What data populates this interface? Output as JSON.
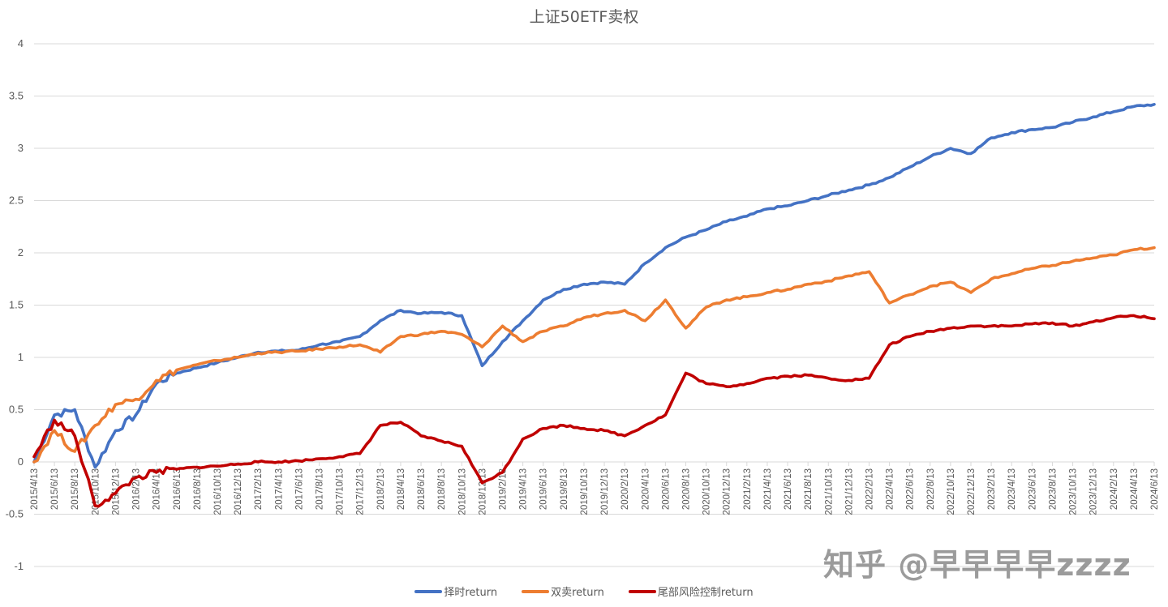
{
  "chart_data": {
    "type": "line",
    "title": "上证50ETF卖权",
    "xlabel": "",
    "ylabel": "",
    "ylim": [
      -1,
      4
    ],
    "yticks": [
      "4",
      "3.5",
      "3",
      "2.5",
      "2",
      "1.5",
      "1",
      "0.5",
      "0",
      "-0.5",
      "-1"
    ],
    "grid": true,
    "legend_position": "bottom",
    "categories": [
      "2015/4/13",
      "2015/6/13",
      "2015/8/13",
      "2015/10/13",
      "2015/12/13",
      "2016/2/13",
      "2016/4/13",
      "2016/6/13",
      "2016/8/13",
      "2016/10/13",
      "2016/12/13",
      "2017/2/13",
      "2017/4/13",
      "2017/6/13",
      "2017/8/13",
      "2017/10/13",
      "2017/12/13",
      "2018/2/13",
      "2018/4/13",
      "2018/6/13",
      "2018/8/13",
      "2018/10/13",
      "2018/12/13",
      "2019/2/13",
      "2019/4/13",
      "2019/6/13",
      "2019/8/13",
      "2019/10/13",
      "2019/12/13",
      "2020/2/13",
      "2020/4/13",
      "2020/6/13",
      "2020/8/13",
      "2020/10/13",
      "2020/12/13",
      "2021/2/13",
      "2021/4/13",
      "2021/6/13",
      "2021/8/13",
      "2021/10/13",
      "2021/12/13",
      "2022/2/13",
      "2022/4/13",
      "2022/6/13",
      "2022/8/13",
      "2022/10/13",
      "2022/12/13",
      "2023/2/13",
      "2023/4/13",
      "2023/6/13",
      "2023/8/13",
      "2023/10/13",
      "2023/12/13",
      "2024/2/13",
      "2024/4/13",
      "2024/6/13"
    ],
    "series": [
      {
        "name": "择时return",
        "color": "#4472C4",
        "values": [
          0.0,
          0.45,
          0.5,
          -0.05,
          0.3,
          0.45,
          0.75,
          0.85,
          0.9,
          0.95,
          1.0,
          1.05,
          1.06,
          1.07,
          1.12,
          1.15,
          1.2,
          1.35,
          1.45,
          1.42,
          1.43,
          1.4,
          0.92,
          1.15,
          1.35,
          1.55,
          1.65,
          1.7,
          1.72,
          1.7,
          1.9,
          2.05,
          2.15,
          2.22,
          2.3,
          2.35,
          2.42,
          2.45,
          2.5,
          2.55,
          2.6,
          2.65,
          2.72,
          2.82,
          2.92,
          3.0,
          2.95,
          3.1,
          3.15,
          3.18,
          3.2,
          3.25,
          3.3,
          3.35,
          3.4,
          3.42
        ]
      },
      {
        "name": "双卖return",
        "color": "#ED7D31",
        "values": [
          0.0,
          0.3,
          0.1,
          0.35,
          0.55,
          0.6,
          0.78,
          0.88,
          0.93,
          0.97,
          1.0,
          1.04,
          1.05,
          1.06,
          1.08,
          1.1,
          1.12,
          1.05,
          1.2,
          1.22,
          1.25,
          1.22,
          1.1,
          1.3,
          1.15,
          1.25,
          1.3,
          1.38,
          1.42,
          1.45,
          1.35,
          1.55,
          1.28,
          1.48,
          1.55,
          1.58,
          1.62,
          1.65,
          1.7,
          1.73,
          1.78,
          1.82,
          1.52,
          1.6,
          1.68,
          1.72,
          1.62,
          1.75,
          1.8,
          1.85,
          1.88,
          1.92,
          1.95,
          1.98,
          2.03,
          2.05
        ]
      },
      {
        "name": "尾部风险控制return",
        "color": "#C00000",
        "values": [
          0.05,
          0.4,
          0.25,
          -0.42,
          -0.3,
          -0.15,
          -0.1,
          -0.07,
          -0.05,
          -0.04,
          -0.02,
          0.0,
          0.0,
          0.01,
          0.03,
          0.05,
          0.08,
          0.35,
          0.38,
          0.25,
          0.2,
          0.15,
          -0.2,
          -0.1,
          0.22,
          0.32,
          0.35,
          0.32,
          0.3,
          0.25,
          0.35,
          0.45,
          0.85,
          0.75,
          0.72,
          0.75,
          0.8,
          0.82,
          0.83,
          0.8,
          0.78,
          0.8,
          1.12,
          1.2,
          1.25,
          1.28,
          1.3,
          1.3,
          1.3,
          1.32,
          1.33,
          1.3,
          1.34,
          1.38,
          1.4,
          1.37
        ]
      }
    ]
  },
  "legend": {
    "items": [
      {
        "label": "择时return",
        "color": "#4472C4"
      },
      {
        "label": "双卖return",
        "color": "#ED7D31"
      },
      {
        "label": "尾部风险控制return",
        "color": "#C00000"
      }
    ]
  },
  "watermark": "知乎 @早早早早zzzz"
}
